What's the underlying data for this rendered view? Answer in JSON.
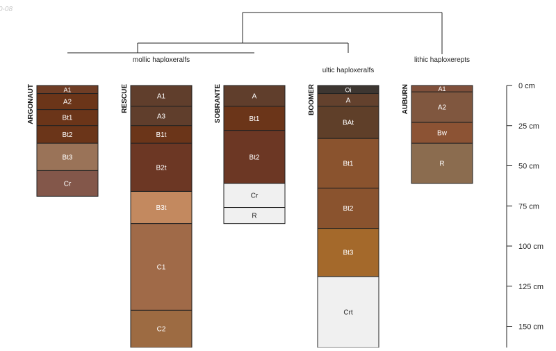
{
  "date_stamp": "0-08",
  "groups": [
    {
      "id": "mollic",
      "label": "mollic haploxeralfs"
    },
    {
      "id": "ultic",
      "label": "ultic haploxeralfs"
    },
    {
      "id": "lithic",
      "label": "lithic haploxerepts"
    }
  ],
  "depth_axis": {
    "unit": "cm",
    "ticks": [
      {
        "value": 0,
        "label": "0 cm"
      },
      {
        "value": 25,
        "label": "25 cm"
      },
      {
        "value": 50,
        "label": "50 cm"
      },
      {
        "value": 75,
        "label": "75 cm"
      },
      {
        "value": 100,
        "label": "100 cm"
      },
      {
        "value": 125,
        "label": "125 cm"
      },
      {
        "value": 150,
        "label": "150 cm"
      }
    ]
  },
  "profiles": [
    {
      "name": "ARGONAUT",
      "group": "mollic",
      "horizons": [
        {
          "name": "A1",
          "top": 0,
          "bottom": 5,
          "color": "#6f3d25"
        },
        {
          "name": "A2",
          "top": 5,
          "bottom": 15,
          "color": "#6b3519"
        },
        {
          "name": "Bt1",
          "top": 15,
          "bottom": 25,
          "color": "#6b3519"
        },
        {
          "name": "Bt2",
          "top": 25,
          "bottom": 36,
          "color": "#6b3519"
        },
        {
          "name": "Bt3",
          "top": 36,
          "bottom": 53,
          "color": "#9a7358"
        },
        {
          "name": "Cr",
          "top": 53,
          "bottom": 69,
          "color": "#83574a"
        }
      ]
    },
    {
      "name": "RESCUE",
      "group": "mollic",
      "horizons": [
        {
          "name": "A1",
          "top": 0,
          "bottom": 13,
          "color": "#603e2c"
        },
        {
          "name": "A3",
          "top": 13,
          "bottom": 25,
          "color": "#603e2c"
        },
        {
          "name": "B1t",
          "top": 25,
          "bottom": 36,
          "color": "#6b3519"
        },
        {
          "name": "B2t",
          "top": 36,
          "bottom": 66,
          "color": "#6c3724"
        },
        {
          "name": "B3t",
          "top": 66,
          "bottom": 86,
          "color": "#c3895f"
        },
        {
          "name": "C1",
          "top": 86,
          "bottom": 140,
          "color": "#a06a48"
        },
        {
          "name": "C2",
          "top": 140,
          "bottom": 165,
          "color": "#9d6b42"
        }
      ]
    },
    {
      "name": "SOBRANTE",
      "group": "mollic",
      "horizons": [
        {
          "name": "A",
          "top": 0,
          "bottom": 13,
          "color": "#603e2c"
        },
        {
          "name": "Bt1",
          "top": 13,
          "bottom": 28,
          "color": "#6b3519"
        },
        {
          "name": "Bt2",
          "top": 28,
          "bottom": 61,
          "color": "#6c3724"
        },
        {
          "name": "Cr",
          "top": 61,
          "bottom": 76,
          "color": "#f0f0f0"
        },
        {
          "name": "R",
          "top": 76,
          "bottom": 86,
          "color": "#f0f0f0"
        }
      ]
    },
    {
      "name": "BOOMER",
      "group": "ultic",
      "horizons": [
        {
          "name": "Oi",
          "top": 0,
          "bottom": 5,
          "color": "#3d3631"
        },
        {
          "name": "A",
          "top": 5,
          "bottom": 13,
          "color": "#63412d"
        },
        {
          "name": "BAt",
          "top": 13,
          "bottom": 33,
          "color": "#5f3f29"
        },
        {
          "name": "Bt1",
          "top": 33,
          "bottom": 64,
          "color": "#8a532e"
        },
        {
          "name": "Bt2",
          "top": 64,
          "bottom": 89,
          "color": "#8a532e"
        },
        {
          "name": "Bt3",
          "top": 89,
          "bottom": 119,
          "color": "#a4692b"
        },
        {
          "name": "Crt",
          "top": 119,
          "bottom": 165,
          "color": "#f0f0f0"
        }
      ]
    },
    {
      "name": "AUBURN",
      "group": "lithic",
      "horizons": [
        {
          "name": "A1",
          "top": 0,
          "bottom": 4,
          "color": "#80503b"
        },
        {
          "name": "A2",
          "top": 4,
          "bottom": 23,
          "color": "#80573f"
        },
        {
          "name": "Bw",
          "top": 23,
          "bottom": 36,
          "color": "#8c5334"
        },
        {
          "name": "R",
          "top": 36,
          "bottom": 61,
          "color": "#8b6c4f"
        }
      ]
    }
  ]
}
